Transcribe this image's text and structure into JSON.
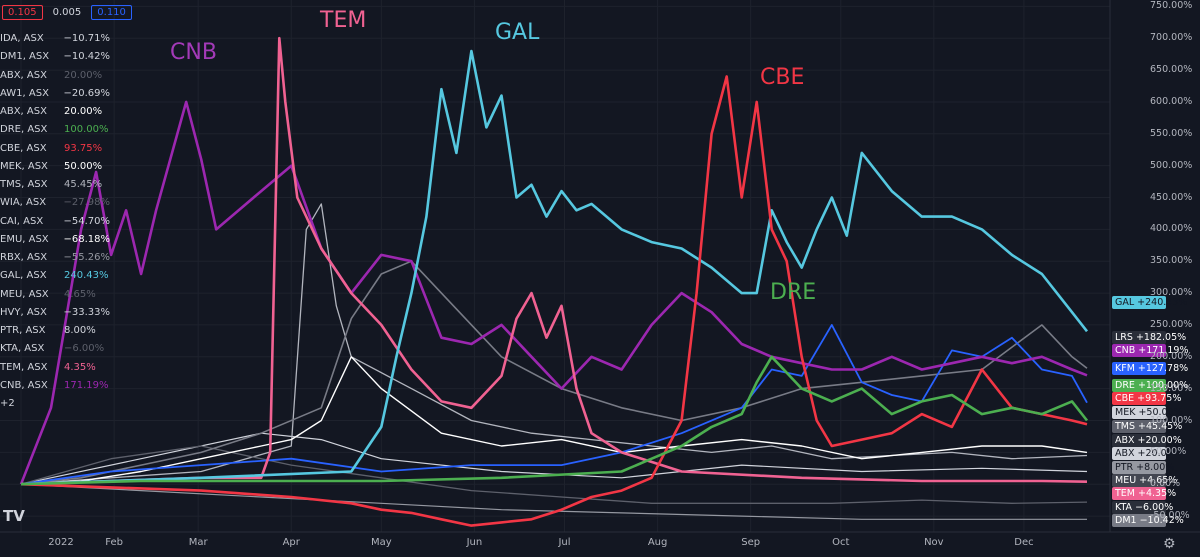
{
  "top_boxes": [
    {
      "text": "0.105",
      "color": "#f23645"
    },
    {
      "text": "0.005",
      "color": "#131722"
    },
    {
      "text": "0.110",
      "color": "#2962ff"
    }
  ],
  "legend": [
    {
      "symbol": "IDA, ASX",
      "value": "−10.71%",
      "color": "#d1d4dc"
    },
    {
      "symbol": "DM1, ASX",
      "value": "−10.42%",
      "color": "#d1d4dc"
    },
    {
      "symbol": "ABX, ASX",
      "value": "20.00%",
      "color": "#5d606b"
    },
    {
      "symbol": "AW1, ASX",
      "value": "−20.69%",
      "color": "#d1d4dc"
    },
    {
      "symbol": "ABX, ASX",
      "value": "20.00%",
      "color": "#ffffff"
    },
    {
      "symbol": "DRE, ASX",
      "value": "100.00%",
      "color": "#4caf50"
    },
    {
      "symbol": "CBE, ASX",
      "value": "93.75%",
      "color": "#f23645"
    },
    {
      "symbol": "MEK, ASX",
      "value": "50.00%",
      "color": "#ffffff"
    },
    {
      "symbol": "TMS, ASX",
      "value": "45.45%",
      "color": "#b2b5be"
    },
    {
      "symbol": "WIA, ASX",
      "value": "−27.98%",
      "color": "#5d606b"
    },
    {
      "symbol": "CAI, ASX",
      "value": "−54.70%",
      "color": "#d1d4dc"
    },
    {
      "symbol": "EMU, ASX",
      "value": "−68.18%",
      "color": "#ffffff"
    },
    {
      "symbol": "RBX, ASX",
      "value": "−55.26%",
      "color": "#9598a1"
    },
    {
      "symbol": "GAL, ASX",
      "value": "240.43%",
      "color": "#56c8e0"
    },
    {
      "symbol": "MEU, ASX",
      "value": "4.65%",
      "color": "#5d606b"
    },
    {
      "symbol": "HVY, ASX",
      "value": "−33.33%",
      "color": "#d1d4dc"
    },
    {
      "symbol": "PTR, ASX",
      "value": "8.00%",
      "color": "#d1d4dc"
    },
    {
      "symbol": "KTA, ASX",
      "value": "−6.00%",
      "color": "#5d606b"
    },
    {
      "symbol": "TEM, ASX",
      "value": "4.35%",
      "color": "#f06292"
    },
    {
      "symbol": "CNB, ASX",
      "value": "171.19%",
      "color": "#9c27b0"
    },
    {
      "symbol": "+2",
      "value": "",
      "color": "#d1d4dc"
    }
  ],
  "annotations": [
    {
      "text": "CNB",
      "color": "#a33ab8"
    },
    {
      "text": "TEM",
      "color": "#f06292"
    },
    {
      "text": "GAL",
      "color": "#56c8e0"
    },
    {
      "text": "CBE",
      "color": "#f23645"
    },
    {
      "text": "DRE",
      "color": "#4caf50"
    }
  ],
  "price_tags": [
    {
      "label": "GAL",
      "value": "+240.43%",
      "bg": "#56c8e0",
      "fg": "#131722"
    },
    {
      "label": "LRS",
      "value": "+182.05%",
      "bg": "#2a2e39",
      "fg": "#ffffff"
    },
    {
      "label": "CNB",
      "value": "+171.19%",
      "bg": "#9c27b0",
      "fg": "#ffffff"
    },
    {
      "label": "KFM",
      "value": "+127.78%",
      "bg": "#2962ff",
      "fg": "#ffffff"
    },
    {
      "label": "DRE",
      "value": "+100.00%",
      "bg": "#4caf50",
      "fg": "#ffffff"
    },
    {
      "label": "CBE",
      "value": "+93.75%",
      "bg": "#f23645",
      "fg": "#ffffff"
    },
    {
      "label": "MEK",
      "value": "+50.00%",
      "bg": "#d1d4dc",
      "fg": "#131722"
    },
    {
      "label": "TMS",
      "value": "+45.45%",
      "bg": "#5d606b",
      "fg": "#ffffff"
    },
    {
      "label": "ABX",
      "value": "+20.00%",
      "bg": "#2a2e39",
      "fg": "#ffffff"
    },
    {
      "label": "ABX",
      "value": "+20.00%",
      "bg": "#d1d4dc",
      "fg": "#131722"
    },
    {
      "label": "PTR",
      "value": "+8.00%",
      "bg": "#9598a1",
      "fg": "#131722"
    },
    {
      "label": "MEU",
      "value": "+4.65%",
      "bg": "#434651",
      "fg": "#ffffff"
    },
    {
      "label": "TEM",
      "value": "+4.35%",
      "bg": "#f06292",
      "fg": "#ffffff"
    },
    {
      "label": "KTA",
      "value": "−6.00%",
      "bg": "#2a2e39",
      "fg": "#ffffff"
    },
    {
      "label": "DM1",
      "value": "−10.42%",
      "bg": "#787b86",
      "fg": "#ffffff"
    }
  ],
  "chart_data": {
    "type": "line",
    "title": "",
    "y_unit": "%",
    "ylim": [
      -75,
      760
    ],
    "y_ticks": [
      "750.00%",
      "700.00%",
      "650.00%",
      "600.00%",
      "550.00%",
      "500.00%",
      "450.00%",
      "400.00%",
      "350.00%",
      "300.00%",
      "250.00%",
      "200.00%",
      "150.00%",
      "100.00%",
      "50.00%",
      "0.00%",
      "-50.00%"
    ],
    "x_ticks": [
      "2022",
      "Feb",
      "Mar",
      "Apr",
      "May",
      "Jun",
      "Jul",
      "Aug",
      "Sep",
      "Oct",
      "Nov",
      "Dec"
    ],
    "xlim_days": [
      -7,
      362
    ],
    "series": [
      {
        "name": "CNB",
        "color": "#9c27b0",
        "width": 2.6,
        "x": [
          0,
          10,
          20,
          25,
          30,
          35,
          40,
          45,
          55,
          60,
          65,
          70,
          80,
          90,
          100,
          110,
          120,
          130,
          140,
          150,
          160,
          170,
          180,
          190,
          200,
          210,
          220,
          230,
          240,
          250,
          260,
          270,
          280,
          290,
          300,
          310,
          320,
          330,
          340,
          350,
          355
        ],
        "y": [
          0,
          120,
          400,
          490,
          360,
          430,
          330,
          430,
          600,
          510,
          400,
          420,
          460,
          500,
          370,
          300,
          360,
          350,
          230,
          220,
          250,
          200,
          150,
          200,
          180,
          250,
          300,
          270,
          220,
          200,
          190,
          180,
          180,
          200,
          180,
          190,
          200,
          190,
          200,
          180,
          171
        ]
      },
      {
        "name": "TEM",
        "color": "#f06292",
        "width": 2.6,
        "x": [
          0,
          30,
          60,
          80,
          83,
          86,
          88,
          92,
          100,
          110,
          120,
          130,
          140,
          150,
          160,
          165,
          170,
          175,
          180,
          185,
          190,
          200,
          220,
          260,
          300,
          340,
          355
        ],
        "y": [
          0,
          5,
          10,
          10,
          50,
          700,
          600,
          450,
          370,
          300,
          250,
          180,
          130,
          120,
          170,
          260,
          300,
          230,
          280,
          150,
          80,
          50,
          20,
          10,
          5,
          5,
          4
        ],
        "x2": [
          85,
          87,
          89
        ],
        "y2": [
          680,
          720,
          560
        ]
      },
      {
        "name": "GAL",
        "color": "#56c8e0",
        "width": 2.6,
        "x": [
          0,
          60,
          110,
          120,
          125,
          130,
          135,
          140,
          145,
          150,
          155,
          160,
          165,
          170,
          175,
          180,
          185,
          190,
          200,
          210,
          220,
          230,
          240,
          245,
          250,
          255,
          260,
          265,
          270,
          275,
          280,
          290,
          300,
          310,
          320,
          330,
          340,
          350,
          355
        ],
        "y": [
          0,
          10,
          20,
          90,
          200,
          300,
          420,
          620,
          520,
          680,
          560,
          610,
          450,
          470,
          420,
          460,
          430,
          440,
          400,
          380,
          370,
          340,
          300,
          300,
          430,
          380,
          340,
          400,
          450,
          390,
          520,
          460,
          420,
          420,
          400,
          360,
          330,
          270,
          240
        ]
      },
      {
        "name": "CBE",
        "color": "#f23645",
        "width": 2.6,
        "x": [
          0,
          30,
          60,
          90,
          110,
          120,
          130,
          140,
          150,
          160,
          170,
          180,
          190,
          200,
          210,
          220,
          225,
          230,
          235,
          240,
          245,
          250,
          255,
          260,
          265,
          270,
          280,
          290,
          300,
          310,
          320,
          330,
          340,
          350,
          355
        ],
        "y": [
          0,
          -5,
          -10,
          -20,
          -30,
          -40,
          -45,
          -55,
          -65,
          -60,
          -55,
          -40,
          -20,
          -10,
          10,
          100,
          300,
          550,
          640,
          450,
          600,
          400,
          350,
          200,
          100,
          60,
          70,
          80,
          110,
          90,
          180,
          120,
          110,
          100,
          94
        ]
      },
      {
        "name": "DRE",
        "color": "#4caf50",
        "width": 2.6,
        "x": [
          0,
          40,
          80,
          120,
          160,
          200,
          210,
          220,
          230,
          240,
          245,
          250,
          260,
          270,
          280,
          290,
          300,
          310,
          320,
          330,
          340,
          350,
          355
        ],
        "y": [
          0,
          5,
          5,
          5,
          10,
          20,
          40,
          60,
          90,
          110,
          160,
          200,
          150,
          130,
          150,
          110,
          130,
          140,
          110,
          120,
          110,
          130,
          100
        ]
      },
      {
        "name": "KFM",
        "color": "#2962ff",
        "width": 1.8,
        "x": [
          0,
          30,
          60,
          90,
          120,
          150,
          180,
          200,
          220,
          240,
          250,
          260,
          270,
          280,
          290,
          300,
          310,
          320,
          330,
          340,
          350,
          355
        ],
        "y": [
          0,
          20,
          30,
          40,
          20,
          30,
          30,
          50,
          80,
          120,
          180,
          170,
          250,
          160,
          140,
          130,
          210,
          200,
          230,
          180,
          170,
          128
        ]
      },
      {
        "name": "LRS",
        "color": "#787b86",
        "width": 1.6,
        "x": [
          0,
          20,
          40,
          60,
          80,
          100,
          110,
          120,
          130,
          140,
          160,
          180,
          200,
          220,
          240,
          260,
          280,
          300,
          320,
          340,
          350,
          355
        ],
        "y": [
          0,
          10,
          30,
          50,
          80,
          120,
          260,
          330,
          350,
          300,
          200,
          150,
          120,
          100,
          120,
          150,
          160,
          170,
          180,
          250,
          200,
          182
        ]
      },
      {
        "name": "MEK",
        "color": "#ffffff",
        "width": 1.4,
        "x": [
          0,
          20,
          40,
          60,
          80,
          90,
          100,
          110,
          120,
          140,
          160,
          180,
          200,
          220,
          240,
          260,
          280,
          300,
          320,
          340,
          355
        ],
        "y": [
          0,
          5,
          20,
          40,
          60,
          70,
          100,
          200,
          150,
          80,
          60,
          70,
          50,
          60,
          70,
          60,
          40,
          50,
          60,
          60,
          50
        ]
      },
      {
        "name": "TMS",
        "color": "#b2b5be",
        "width": 1.3,
        "x": [
          0,
          30,
          60,
          90,
          95,
          100,
          105,
          110,
          130,
          150,
          170,
          190,
          210,
          230,
          250,
          270,
          290,
          310,
          330,
          355
        ],
        "y": [
          0,
          10,
          20,
          60,
          400,
          440,
          280,
          200,
          150,
          100,
          80,
          70,
          60,
          50,
          60,
          40,
          45,
          50,
          40,
          45
        ]
      },
      {
        "name": "WIA",
        "color": "#5d606b",
        "width": 1.3,
        "x": [
          0,
          30,
          60,
          90,
          120,
          150,
          180,
          210,
          240,
          270,
          300,
          330,
          355
        ],
        "y": [
          0,
          40,
          60,
          30,
          10,
          -10,
          -20,
          -30,
          -30,
          -30,
          -25,
          -30,
          -28
        ]
      },
      {
        "name": "ABX",
        "color": "#d1d4dc",
        "width": 1.2,
        "x": [
          0,
          40,
          80,
          100,
          120,
          160,
          200,
          240,
          280,
          320,
          355
        ],
        "y": [
          0,
          40,
          80,
          70,
          40,
          20,
          10,
          30,
          20,
          25,
          20
        ]
      },
      {
        "name": "RBX",
        "color": "#9598a1",
        "width": 1.2,
        "x": [
          0,
          40,
          80,
          120,
          160,
          200,
          240,
          280,
          320,
          355
        ],
        "y": [
          0,
          -10,
          -20,
          -30,
          -40,
          -45,
          -50,
          -55,
          -55,
          -55
        ]
      }
    ]
  },
  "branding": "TV"
}
